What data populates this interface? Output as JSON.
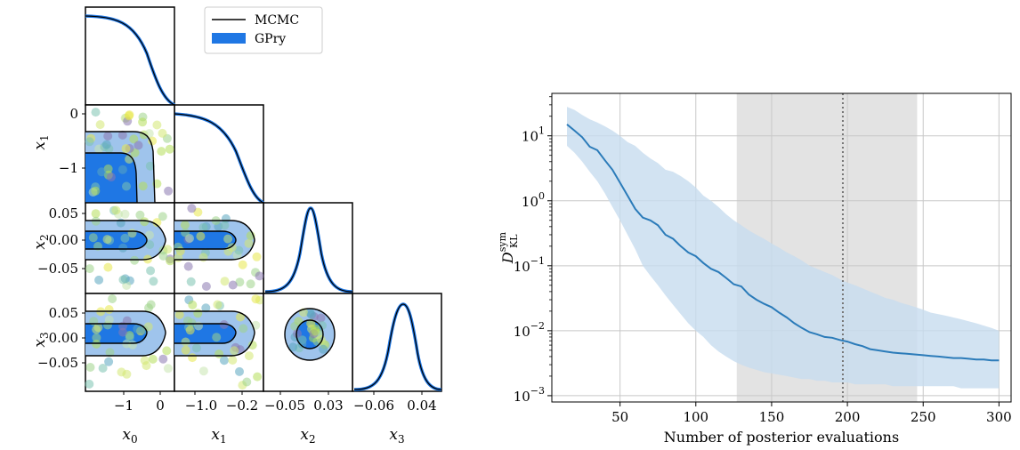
{
  "corner": {
    "legend": [
      {
        "label": "MCMC",
        "color": "#000000",
        "style": "line"
      },
      {
        "label": "GPry",
        "color": "#1f77e4",
        "style": "patch"
      }
    ],
    "params": [
      "x0",
      "x1",
      "x2",
      "x3"
    ],
    "xlabels": [
      {
        "base": "x",
        "sub": "0"
      },
      {
        "base": "x",
        "sub": "1"
      },
      {
        "base": "x",
        "sub": "2"
      },
      {
        "base": "x",
        "sub": "3"
      }
    ],
    "ylabels": [
      {
        "base": "x",
        "sub": "1"
      },
      {
        "base": "x",
        "sub": "2"
      },
      {
        "base": "x",
        "sub": "3"
      }
    ],
    "xticks": [
      [
        "−1",
        "0"
      ],
      [
        "−1.0",
        "−0.2"
      ],
      [
        "−0.05",
        "0.03"
      ],
      [
        "−0.06",
        "0.04"
      ]
    ],
    "yticks": [
      [
        "0",
        "−1"
      ],
      [
        "0.05",
        "0.00",
        "−0.05"
      ],
      [
        "0.05",
        "0.00",
        "−0.05"
      ]
    ]
  },
  "chart_data": {
    "type": "line",
    "xlabel": "Number of posterior evaluations",
    "ylabel_base": "D",
    "ylabel_sup": "sym",
    "ylabel_sub": "KL",
    "xlim": [
      5,
      308
    ],
    "ylim": [
      0.0008,
      45
    ],
    "yscale": "log",
    "xticks": [
      50,
      100,
      150,
      200,
      250,
      300
    ],
    "yticks": [
      {
        "base": "10",
        "exp": "1",
        "value": 10
      },
      {
        "base": "10",
        "exp": "0",
        "value": 1
      },
      {
        "base": "10",
        "exp": "−1",
        "value": 0.1
      },
      {
        "base": "10",
        "exp": "−2",
        "value": 0.01
      },
      {
        "base": "10",
        "exp": "−3",
        "value": 0.001
      }
    ],
    "grid": true,
    "shaded_span": [
      127,
      246
    ],
    "vline": 197,
    "colors": {
      "line": "#2b7bb9",
      "band": "#c7dcef",
      "span": "#e3e3e3",
      "vline": "#777777"
    },
    "series": [
      {
        "x": [
          15,
          20,
          25,
          30,
          35,
          40,
          45,
          50,
          55,
          60,
          65,
          70,
          75,
          80,
          85,
          90,
          95,
          100,
          105,
          110,
          115,
          120,
          125,
          130,
          135,
          140,
          145,
          150,
          155,
          160,
          165,
          170,
          175,
          180,
          185,
          190,
          195,
          200,
          205,
          210,
          215,
          220,
          225,
          230,
          235,
          240,
          245,
          250,
          255,
          260,
          265,
          270,
          275,
          280,
          285,
          290,
          295,
          300
        ],
        "median": [
          15,
          12,
          9.5,
          6.8,
          6.0,
          4.2,
          3.0,
          1.9,
          1.2,
          0.75,
          0.55,
          0.5,
          0.42,
          0.3,
          0.26,
          0.2,
          0.16,
          0.14,
          0.11,
          0.09,
          0.08,
          0.065,
          0.052,
          0.048,
          0.036,
          0.03,
          0.026,
          0.023,
          0.019,
          0.016,
          0.013,
          0.011,
          0.0095,
          0.0088,
          0.008,
          0.0078,
          0.0072,
          0.0068,
          0.0062,
          0.0058,
          0.0052,
          0.005,
          0.0048,
          0.0046,
          0.0045,
          0.0044,
          0.0043,
          0.0042,
          0.0041,
          0.004,
          0.0039,
          0.0038,
          0.0038,
          0.0037,
          0.0036,
          0.0036,
          0.0035,
          0.0035
        ],
        "upper": [
          28,
          25,
          21,
          18,
          16,
          14,
          12,
          10,
          8,
          7,
          5.5,
          4.5,
          3.8,
          3.0,
          2.8,
          2.4,
          2.0,
          1.6,
          1.2,
          1.0,
          0.8,
          0.62,
          0.5,
          0.42,
          0.35,
          0.3,
          0.26,
          0.22,
          0.19,
          0.16,
          0.14,
          0.12,
          0.1,
          0.09,
          0.08,
          0.072,
          0.062,
          0.055,
          0.05,
          0.045,
          0.04,
          0.036,
          0.032,
          0.03,
          0.027,
          0.025,
          0.023,
          0.021,
          0.019,
          0.018,
          0.017,
          0.016,
          0.015,
          0.014,
          0.013,
          0.012,
          0.011,
          0.01
        ],
        "lower": [
          7,
          5.5,
          4.0,
          2.8,
          2.0,
          1.3,
          0.8,
          0.5,
          0.3,
          0.18,
          0.1,
          0.07,
          0.05,
          0.035,
          0.025,
          0.018,
          0.013,
          0.01,
          0.008,
          0.006,
          0.0048,
          0.004,
          0.0034,
          0.003,
          0.0027,
          0.0025,
          0.0023,
          0.0022,
          0.0021,
          0.002,
          0.0019,
          0.0018,
          0.0018,
          0.0017,
          0.0017,
          0.0016,
          0.0016,
          0.0016,
          0.0015,
          0.0015,
          0.0015,
          0.0015,
          0.0015,
          0.0014,
          0.0014,
          0.0014,
          0.0014,
          0.0014,
          0.0014,
          0.0014,
          0.0014,
          0.0014,
          0.0013,
          0.0013,
          0.0013,
          0.0013,
          0.0013,
          0.0013
        ]
      }
    ]
  }
}
